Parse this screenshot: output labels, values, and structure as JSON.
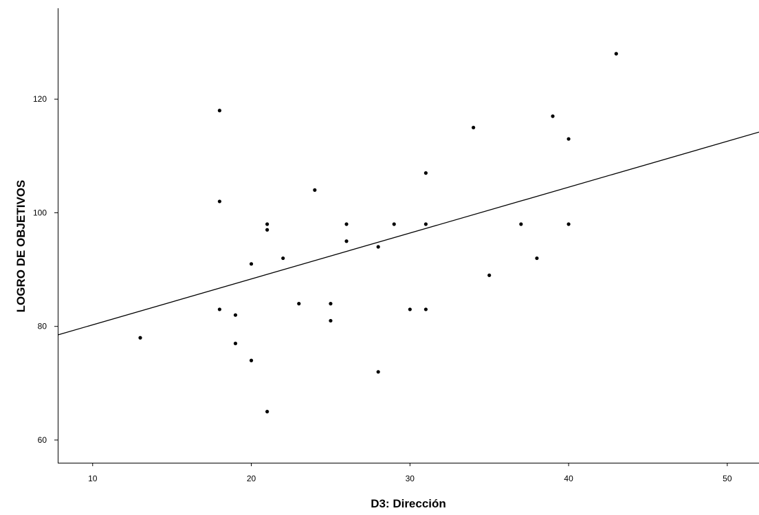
{
  "chart_data": {
    "type": "scatter",
    "title": "",
    "xlabel": "D3: Dirección",
    "ylabel": "LOGRO DE OBJETIVOS",
    "xlim": [
      7.8,
      52
    ],
    "ylim": [
      56,
      136
    ],
    "x_ticks": [
      10,
      20,
      30,
      40,
      50
    ],
    "y_ticks": [
      60,
      80,
      100,
      120
    ],
    "grid": false,
    "legend": "none",
    "point_color": "#000000",
    "line_color": "#000000",
    "points": [
      {
        "x": 13,
        "y": 78
      },
      {
        "x": 18,
        "y": 118
      },
      {
        "x": 18,
        "y": 102
      },
      {
        "x": 18,
        "y": 83
      },
      {
        "x": 19,
        "y": 82
      },
      {
        "x": 19,
        "y": 77
      },
      {
        "x": 20,
        "y": 91
      },
      {
        "x": 20,
        "y": 74
      },
      {
        "x": 21,
        "y": 98
      },
      {
        "x": 21,
        "y": 97
      },
      {
        "x": 21,
        "y": 65
      },
      {
        "x": 22,
        "y": 92
      },
      {
        "x": 23,
        "y": 84
      },
      {
        "x": 24,
        "y": 104
      },
      {
        "x": 25,
        "y": 84
      },
      {
        "x": 25,
        "y": 81
      },
      {
        "x": 26,
        "y": 98
      },
      {
        "x": 26,
        "y": 95
      },
      {
        "x": 28,
        "y": 94
      },
      {
        "x": 28,
        "y": 72
      },
      {
        "x": 29,
        "y": 98
      },
      {
        "x": 30,
        "y": 83
      },
      {
        "x": 31,
        "y": 107
      },
      {
        "x": 31,
        "y": 98
      },
      {
        "x": 31,
        "y": 83
      },
      {
        "x": 34,
        "y": 115
      },
      {
        "x": 35,
        "y": 89
      },
      {
        "x": 37,
        "y": 98
      },
      {
        "x": 38,
        "y": 92
      },
      {
        "x": 39,
        "y": 117
      },
      {
        "x": 40,
        "y": 113
      },
      {
        "x": 40,
        "y": 98
      },
      {
        "x": 43,
        "y": 128
      }
    ],
    "fit_line": {
      "type": "linear",
      "start": {
        "x": 7.8,
        "y": 78.5
      },
      "end": {
        "x": 52,
        "y": 114.2
      }
    }
  }
}
